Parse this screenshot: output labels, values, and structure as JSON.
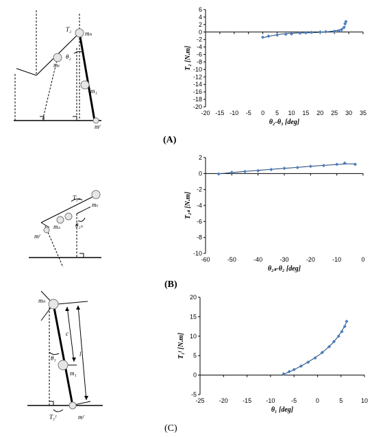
{
  "panel_labels": {
    "a": "(A)",
    "b": "(B)",
    "c": "(C)"
  },
  "diagram_labels": {
    "a": {
      "t2": "T₂",
      "mh": "mₕ",
      "mt": "mₜ",
      "theta2": "θ₂",
      "m1": "m₁",
      "mf": "mᶠ"
    },
    "b": {
      "t2s": "T₂ₛ",
      "mt": "mₜ",
      "ms": "mₛ",
      "theta2s": "θ₂ₛ",
      "mf": "mᶠ"
    },
    "c": {
      "mh": "mₕ",
      "c": "c",
      "l": "l",
      "theta1": "θ₁",
      "m1": "m₁",
      "tlf": "T₁ᶠ",
      "mf": "mᶠ"
    }
  },
  "colors": {
    "marker": "#4a7ec0",
    "line": "#1f3f6e"
  },
  "chart_data": [
    {
      "type": "scatter",
      "xlabel": "θ₂-θ₃ [deg]",
      "ylabel": "T₂ [N.m]",
      "xlim": [
        -20,
        35
      ],
      "ylim": [
        -20,
        6
      ],
      "xticks": [
        -20,
        -15,
        -10,
        -5,
        0,
        5,
        10,
        15,
        20,
        25,
        30,
        35
      ],
      "yticks": [
        -20,
        -18,
        -16,
        -14,
        -12,
        -10,
        -8,
        -6,
        -4,
        -2,
        0,
        2,
        4,
        6
      ],
      "points": [
        [
          0,
          -1.4
        ],
        [
          2,
          -1.1
        ],
        [
          5,
          -0.8
        ],
        [
          8,
          -0.6
        ],
        [
          10,
          -0.5
        ],
        [
          13,
          -0.3
        ],
        [
          15,
          -0.2
        ],
        [
          17,
          -0.1
        ],
        [
          20,
          0
        ],
        [
          22,
          0.1
        ],
        [
          25,
          0.2
        ],
        [
          26.5,
          0.3
        ],
        [
          27.5,
          0.6
        ],
        [
          28.3,
          1.2
        ],
        [
          28.7,
          2.2
        ],
        [
          29,
          2.8
        ]
      ],
      "fit": [
        [
          0,
          -1.5
        ],
        [
          3,
          -1.0
        ],
        [
          6,
          -0.6
        ],
        [
          9,
          -0.35
        ],
        [
          12,
          -0.25
        ],
        [
          15,
          -0.2
        ],
        [
          18,
          -0.15
        ],
        [
          21,
          -0.05
        ],
        [
          23,
          0.1
        ],
        [
          25,
          0.3
        ],
        [
          26.5,
          0.55
        ],
        [
          27.5,
          0.85
        ],
        [
          28.3,
          1.25
        ],
        [
          28.8,
          1.6
        ]
      ]
    },
    {
      "type": "scatter",
      "xlabel": "θ₂ₛ-θ₂ [deg]",
      "ylabel": "T₂ₛ [N.m]",
      "xlim": [
        -60,
        0
      ],
      "ylim": [
        -10,
        2
      ],
      "xticks": [
        -60,
        -50,
        -40,
        -30,
        -20,
        -10,
        0
      ],
      "yticks": [
        -10,
        -8,
        -6,
        -4,
        -2,
        0,
        2
      ],
      "points": [
        [
          -55,
          -0.05
        ],
        [
          -50,
          0.15
        ],
        [
          -45,
          0.25
        ],
        [
          -40,
          0.35
        ],
        [
          -35,
          0.5
        ],
        [
          -30,
          0.65
        ],
        [
          -25,
          0.75
        ],
        [
          -20,
          0.9
        ],
        [
          -15,
          1.0
        ],
        [
          -10,
          1.15
        ],
        [
          -7,
          1.3
        ],
        [
          -3,
          1.15
        ]
      ],
      "fit": [
        [
          -55,
          -0.05
        ],
        [
          -50,
          0.12
        ],
        [
          -45,
          0.27
        ],
        [
          -40,
          0.4
        ],
        [
          -35,
          0.52
        ],
        [
          -30,
          0.65
        ],
        [
          -25,
          0.77
        ],
        [
          -20,
          0.9
        ],
        [
          -15,
          1.02
        ],
        [
          -10,
          1.12
        ],
        [
          -6,
          1.2
        ],
        [
          -3,
          1.22
        ]
      ]
    },
    {
      "type": "scatter",
      "xlabel": "θ₁ [deg]",
      "ylabel": "T₁ᶠ [N.m]",
      "xlim": [
        -25,
        10
      ],
      "ylim": [
        -5,
        20
      ],
      "xticks": [
        -25,
        -20,
        -15,
        -10,
        -5,
        0,
        5,
        10
      ],
      "yticks": [
        -5,
        0,
        5,
        10,
        15,
        20
      ],
      "points": [
        [
          -7.2,
          0.3
        ],
        [
          -6,
          0.9
        ],
        [
          -5,
          1.4
        ],
        [
          -3.5,
          2.3
        ],
        [
          -2,
          3.3
        ],
        [
          -0.5,
          4.4
        ],
        [
          1,
          5.8
        ],
        [
          2.5,
          7.3
        ],
        [
          3.5,
          8.6
        ],
        [
          4.5,
          10
        ],
        [
          5.2,
          11.2
        ],
        [
          5.8,
          12.5
        ],
        [
          6.2,
          13.8
        ]
      ],
      "fit": [
        [
          -7.2,
          0.2
        ],
        [
          -5.5,
          1.1
        ],
        [
          -4,
          2.0
        ],
        [
          -2.5,
          3.0
        ],
        [
          -1,
          4.1
        ],
        [
          0.5,
          5.3
        ],
        [
          2,
          6.8
        ],
        [
          3.2,
          8.2
        ],
        [
          4.2,
          9.6
        ],
        [
          5,
          11.0
        ],
        [
          5.6,
          12.2
        ],
        [
          6.1,
          13.4
        ]
      ]
    }
  ]
}
